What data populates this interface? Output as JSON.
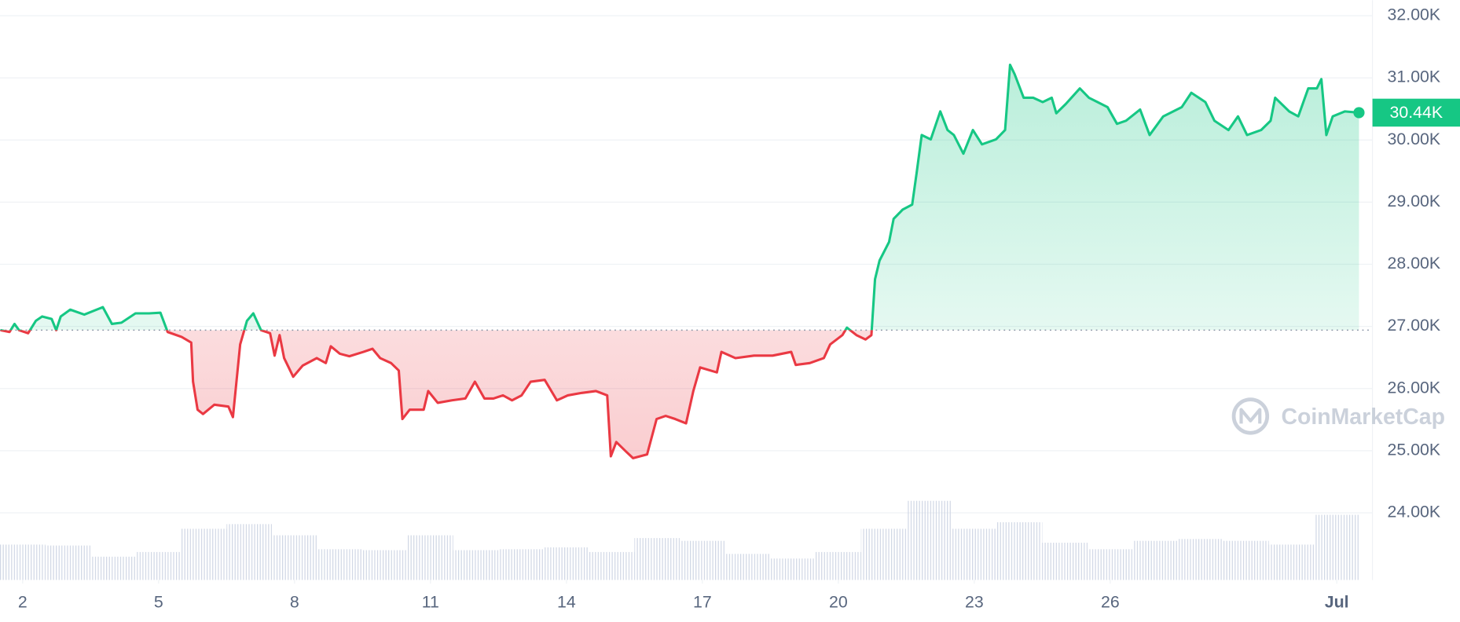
{
  "chart_data": {
    "type": "line",
    "x": [
      1.51,
      1.71,
      1.82,
      1.92,
      2.12,
      2.29,
      2.43,
      2.64,
      2.74,
      2.84,
      3.05,
      3.36,
      3.77,
      3.97,
      4.18,
      4.49,
      4.79,
      5.04,
      5.2,
      5.51,
      5.72,
      5.76,
      5.86,
      5.98,
      6.23,
      6.54,
      6.64,
      6.8,
      6.95,
      7.09,
      7.26,
      7.46,
      7.56,
      7.67,
      7.77,
      7.97,
      8.18,
      8.49,
      8.69,
      8.8,
      9.0,
      9.21,
      9.52,
      9.72,
      9.89,
      10.13,
      10.3,
      10.38,
      10.54,
      10.85,
      10.95,
      11.16,
      11.47,
      11.77,
      11.98,
      12.19,
      12.39,
      12.6,
      12.8,
      13.01,
      13.21,
      13.52,
      13.79,
      14.03,
      14.34,
      14.65,
      14.9,
      14.98,
      15.1,
      15.31,
      15.47,
      15.78,
      15.99,
      16.19,
      16.4,
      16.64,
      16.8,
      16.95,
      17.32,
      17.42,
      17.73,
      18.14,
      18.55,
      18.96,
      19.06,
      19.37,
      19.68,
      19.82,
      20.09,
      20.19,
      20.4,
      20.6,
      20.73,
      20.81,
      20.91,
      21.12,
      21.22,
      21.42,
      21.63,
      21.73,
      21.84,
      22.04,
      22.25,
      22.41,
      22.55,
      22.76,
      22.97,
      23.17,
      23.48,
      23.68,
      23.79,
      23.89,
      24.09,
      24.3,
      24.51,
      24.71,
      24.81,
      25.02,
      25.33,
      25.53,
      25.94,
      26.15,
      26.35,
      26.66,
      26.87,
      27.17,
      27.58,
      27.79,
      28.1,
      28.3,
      28.61,
      28.82,
      29.02,
      29.33,
      29.54,
      29.64,
      29.95,
      30.15,
      30.37,
      30.56,
      30.66,
      30.77,
      30.91,
      31.18,
      31.49
    ],
    "values": [
      26940,
      26910,
      27040,
      26940,
      26890,
      27090,
      27160,
      27120,
      26940,
      27160,
      27270,
      27190,
      27310,
      27040,
      27060,
      27210,
      27210,
      27220,
      26910,
      26830,
      26740,
      26110,
      25660,
      25590,
      25740,
      25710,
      25540,
      26710,
      27090,
      27210,
      26940,
      26890,
      26530,
      26860,
      26490,
      26190,
      26370,
      26490,
      26410,
      26680,
      26560,
      26520,
      26590,
      26640,
      26490,
      26410,
      26290,
      25510,
      25660,
      25660,
      25960,
      25770,
      25810,
      25840,
      26110,
      25840,
      25840,
      25890,
      25810,
      25890,
      26110,
      26140,
      25810,
      25890,
      25930,
      25960,
      25890,
      24910,
      25140,
      24990,
      24880,
      24940,
      25510,
      25560,
      25510,
      25440,
      25960,
      26340,
      26260,
      26590,
      26490,
      26530,
      26530,
      26590,
      26380,
      26410,
      26490,
      26710,
      26860,
      26980,
      26860,
      26790,
      26860,
      27760,
      28060,
      28360,
      28730,
      28880,
      28960,
      29480,
      30080,
      30010,
      30460,
      30160,
      30080,
      29780,
      30160,
      29930,
      30010,
      30160,
      31210,
      31060,
      30680,
      30680,
      30610,
      30680,
      30430,
      30580,
      30830,
      30680,
      30530,
      30260,
      30310,
      30490,
      30080,
      30380,
      30530,
      30760,
      30610,
      30310,
      30160,
      30380,
      30080,
      30160,
      30310,
      30680,
      30460,
      30380,
      30830,
      30830,
      30980,
      30080,
      30380,
      30460,
      30440
    ],
    "baseline": 26940,
    "up_color": "#16c784",
    "down_color": "#ea3943",
    "current_price": {
      "value": 30440,
      "label": "30.44K"
    },
    "volume": {
      "x": [
        2,
        3,
        4,
        5,
        6,
        7,
        8,
        9,
        10,
        11,
        12,
        13,
        14,
        15,
        16,
        17,
        18,
        19,
        20,
        21,
        22,
        23,
        24,
        25,
        26,
        27,
        28,
        29,
        30,
        31
      ],
      "values": [
        38,
        37,
        25,
        30,
        55,
        60,
        48,
        33,
        32,
        48,
        32,
        33,
        35,
        30,
        45,
        42,
        28,
        23,
        30,
        55,
        85,
        55,
        62,
        40,
        33,
        42,
        44,
        42,
        38,
        70
      ]
    },
    "xlim": [
      1.5,
      31.5
    ],
    "xticks": [
      2,
      5,
      8,
      11,
      14,
      17,
      20,
      23,
      26,
      {
        "value": 31,
        "label": "Jul"
      }
    ],
    "ylim": [
      22920,
      32250
    ],
    "yticks": [
      {
        "value": 24000,
        "label": "24.00K"
      },
      {
        "value": 25000,
        "label": "25.00K"
      },
      {
        "value": 26000,
        "label": "26.00K"
      },
      {
        "value": 27000,
        "label": "27.00K"
      },
      {
        "value": 28000,
        "label": "28.00K"
      },
      {
        "value": 29000,
        "label": "29.00K"
      },
      {
        "value": 30000,
        "label": "30.00K"
      },
      {
        "value": 31000,
        "label": "31.00K"
      },
      {
        "value": 32000,
        "label": "32.00K"
      }
    ],
    "grid": true,
    "watermark": "CoinMarketCap"
  }
}
